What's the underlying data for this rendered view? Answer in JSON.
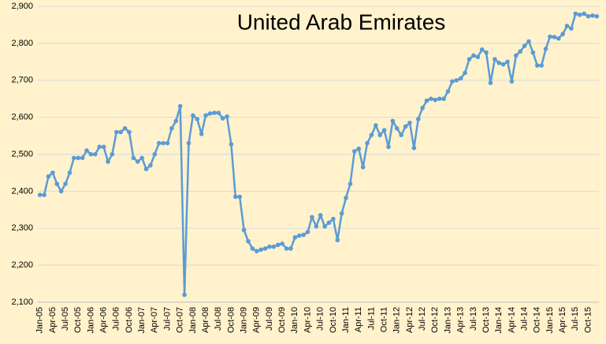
{
  "chart_data": {
    "type": "line",
    "title": "United Arab Emirates",
    "categories": [
      "Jan-05",
      null,
      null,
      "Apr-05",
      null,
      null,
      "Jul-05",
      null,
      null,
      "Oct-05",
      null,
      null,
      "Jan-06",
      null,
      null,
      "Apr-06",
      null,
      null,
      "Jul-06",
      null,
      null,
      "Oct-06",
      null,
      null,
      "Jan-07",
      null,
      null,
      "Apr-07",
      null,
      null,
      "Jul-07",
      null,
      null,
      "Oct-07",
      null,
      null,
      "Jan-08",
      null,
      null,
      "Apr-08",
      null,
      null,
      "Jul-08",
      null,
      null,
      "Oct-08",
      null,
      null,
      "Jan-09",
      null,
      null,
      "Apr-09",
      null,
      null,
      "Jul-09",
      null,
      null,
      "Oct-09",
      null,
      null,
      "Jan-10",
      null,
      null,
      "Apr-10",
      null,
      null,
      "Jul-10",
      null,
      null,
      "Oct-10",
      null,
      null,
      "Jan-11",
      null,
      null,
      "Apr-11",
      null,
      null,
      "Jul-11",
      null,
      null,
      "Oct-11",
      null,
      null,
      "Jan-12",
      null,
      null,
      "Apr-12",
      null,
      null,
      "Jul-12",
      null,
      null,
      "Oct-12",
      null,
      null,
      "Jan-13",
      null,
      null,
      "Apr-13",
      null,
      null,
      "Jul-13",
      null,
      null,
      "Oct-13",
      null,
      null,
      "Jan-14",
      null,
      null,
      "Apr-14",
      null,
      null,
      "Jul-14",
      null,
      null,
      "Oct-14",
      null,
      null,
      "Jan-15",
      null,
      null,
      "Apr-15",
      null,
      null,
      "Jul-15",
      null,
      null,
      "Oct-15",
      null,
      null
    ],
    "values": [
      2390,
      2390,
      2440,
      2450,
      2420,
      2400,
      2420,
      2450,
      2490,
      2490,
      2490,
      2510,
      2500,
      2500,
      2520,
      2520,
      2480,
      2500,
      2560,
      2560,
      2570,
      2560,
      2490,
      2480,
      2490,
      2460,
      2470,
      2500,
      2530,
      2530,
      2530,
      2570,
      2590,
      2630,
      2120,
      2530,
      2605,
      2595,
      2555,
      2605,
      2610,
      2612,
      2612,
      2597,
      2602,
      2527,
      2385,
      2385,
      2295,
      2265,
      2245,
      2238,
      2242,
      2245,
      2250,
      2250,
      2255,
      2258,
      2245,
      2245,
      2275,
      2280,
      2282,
      2290,
      2330,
      2305,
      2335,
      2305,
      2315,
      2325,
      2268,
      2340,
      2382,
      2420,
      2508,
      2515,
      2465,
      2530,
      2552,
      2578,
      2552,
      2565,
      2520,
      2590,
      2570,
      2552,
      2575,
      2585,
      2517,
      2595,
      2625,
      2645,
      2650,
      2647,
      2650,
      2650,
      2670,
      2697,
      2700,
      2705,
      2720,
      2757,
      2767,
      2763,
      2783,
      2775,
      2693,
      2757,
      2747,
      2743,
      2750,
      2697,
      2767,
      2778,
      2793,
      2805,
      2775,
      2740,
      2740,
      2785,
      2818,
      2817,
      2813,
      2825,
      2847,
      2840,
      2880,
      2877,
      2880,
      2873,
      2875,
      2873
    ],
    "color": "#5b9bd5",
    "ylim": [
      2100,
      2900
    ],
    "yticks": [
      {
        "value": 2100,
        "label": "2,100"
      },
      {
        "value": 2200,
        "label": "2,200"
      },
      {
        "value": 2300,
        "label": "2,300"
      },
      {
        "value": 2400,
        "label": "2,400"
      },
      {
        "value": 2500,
        "label": "2,500"
      },
      {
        "value": 2600,
        "label": "2,600"
      },
      {
        "value": 2700,
        "label": "2,700"
      },
      {
        "value": 2800,
        "label": "2,800"
      },
      {
        "value": 2900,
        "label": "2,900"
      }
    ],
    "grid": true
  }
}
